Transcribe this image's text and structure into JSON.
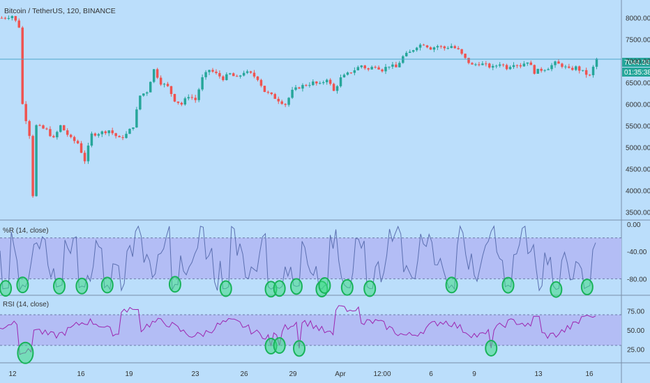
{
  "header": {
    "title": "Bitcoin / TetherUS, 120, BINANCE"
  },
  "colors": {
    "background": "#bbdefb",
    "up": "#26a69a",
    "down": "#ef5350",
    "wr_line": "#5b6fb0",
    "rsi_line": "#9c27b0",
    "band_fill": "#b3bdf5",
    "highlight": "#3ddc84",
    "price_line": "#4ca6c9",
    "axis_text": "#333333"
  },
  "chart_data": [
    {
      "type": "candlestick",
      "name_label": "Bitcoin / TetherUS, 120, BINANCE",
      "y_ticks": [
        8000,
        7500,
        7000,
        6500,
        6000,
        5500,
        5000,
        4500,
        4000,
        3500
      ],
      "y_tick_labels": [
        "8000.00",
        "7500.00",
        "7000.00",
        "6500.00",
        "6000.00",
        "5500.00",
        "5000.00",
        "4500.00",
        "4000.00",
        "3500.00"
      ],
      "ylim": [
        3350,
        8350
      ],
      "last_price": 7044.36,
      "last_price_label": "7044.36",
      "countdown_label": "01:35:38",
      "key_points": [
        [
          0,
          8000
        ],
        [
          3,
          8050
        ],
        [
          5,
          7800
        ],
        [
          6,
          6000
        ],
        [
          8,
          5300
        ],
        [
          9,
          3900
        ],
        [
          10,
          5500
        ],
        [
          13,
          5400
        ],
        [
          15,
          5200
        ],
        [
          17,
          5500
        ],
        [
          20,
          5200
        ],
        [
          22,
          5100
        ],
        [
          24,
          4700
        ],
        [
          26,
          5300
        ],
        [
          29,
          5350
        ],
        [
          31,
          5400
        ],
        [
          34,
          5200
        ],
        [
          36,
          5300
        ],
        [
          38,
          5500
        ],
        [
          40,
          6200
        ],
        [
          42,
          6300
        ],
        [
          44,
          6800
        ],
        [
          46,
          6500
        ],
        [
          48,
          6400
        ],
        [
          50,
          6100
        ],
        [
          52,
          6000
        ],
        [
          54,
          6200
        ],
        [
          56,
          6100
        ],
        [
          58,
          6600
        ],
        [
          60,
          6800
        ],
        [
          62,
          6700
        ],
        [
          64,
          6600
        ],
        [
          66,
          6700
        ],
        [
          68,
          6600
        ],
        [
          70,
          6750
        ],
        [
          72,
          6700
        ],
        [
          74,
          6600
        ],
        [
          76,
          6300
        ],
        [
          78,
          6200
        ],
        [
          80,
          6100
        ],
        [
          82,
          6000
        ],
        [
          84,
          6300
        ],
        [
          86,
          6400
        ],
        [
          88,
          6450
        ],
        [
          90,
          6500
        ],
        [
          92,
          6450
        ],
        [
          94,
          6600
        ],
        [
          96,
          6300
        ],
        [
          98,
          6600
        ],
        [
          100,
          6700
        ],
        [
          102,
          6800
        ],
        [
          104,
          6900
        ],
        [
          106,
          6800
        ],
        [
          108,
          6900
        ],
        [
          110,
          6800
        ],
        [
          112,
          6900
        ],
        [
          114,
          6850
        ],
        [
          116,
          7100
        ],
        [
          118,
          7200
        ],
        [
          120,
          7350
        ],
        [
          122,
          7400
        ],
        [
          124,
          7300
        ],
        [
          126,
          7350
        ],
        [
          128,
          7300
        ],
        [
          130,
          7350
        ],
        [
          132,
          7250
        ],
        [
          134,
          7050
        ],
        [
          136,
          6900
        ],
        [
          138,
          6950
        ],
        [
          140,
          6900
        ],
        [
          142,
          6850
        ],
        [
          144,
          6950
        ],
        [
          146,
          6850
        ],
        [
          148,
          6950
        ],
        [
          150,
          6900
        ],
        [
          152,
          7000
        ],
        [
          154,
          6750
        ],
        [
          156,
          6800
        ],
        [
          158,
          6850
        ],
        [
          160,
          6950
        ],
        [
          162,
          6900
        ],
        [
          164,
          6800
        ],
        [
          166,
          6850
        ],
        [
          168,
          6750
        ],
        [
          170,
          6650
        ],
        [
          172,
          7050
        ]
      ],
      "n_candles": 173
    },
    {
      "type": "line",
      "title": "%R (14, close)",
      "y_ticks": [
        0,
        -40,
        -80
      ],
      "y_tick_labels": [
        "0.00",
        "-40.00",
        "-80.00"
      ],
      "ylim": [
        -100,
        0
      ],
      "band": [
        -20,
        -80
      ],
      "highlight_label": "oversold markers",
      "circled_x_index": [
        2,
        8,
        21,
        29,
        38,
        62,
        80,
        96,
        99,
        105,
        114,
        115,
        123,
        131,
        160,
        180,
        197,
        208
      ],
      "x_range": [
        0,
        211
      ]
    },
    {
      "type": "line",
      "title": "RSI (14, close)",
      "y_ticks": [
        75,
        50,
        25
      ],
      "y_tick_labels": [
        "75.00",
        "50.00",
        "25.00"
      ],
      "ylim": [
        10,
        90
      ],
      "band": [
        70,
        30
      ],
      "circled_x_index": [
        9,
        96,
        99,
        106,
        174
      ],
      "x_range": [
        0,
        211
      ]
    }
  ],
  "x_axis": {
    "labels": [
      "12",
      "16",
      "19",
      "23",
      "26",
      "29",
      "Apr",
      "12:00",
      "6",
      "9",
      "13",
      "16"
    ]
  }
}
